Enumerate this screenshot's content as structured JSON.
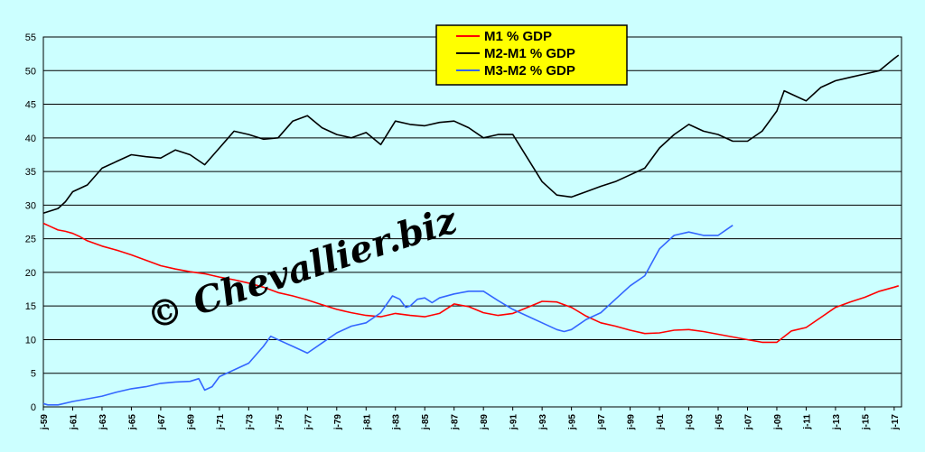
{
  "chart_data": {
    "type": "line",
    "title": "",
    "xlabel": "",
    "ylabel": "",
    "ylim": [
      0,
      55
    ],
    "yticks": [
      "0",
      "5",
      "10",
      "15",
      "20",
      "25",
      "30",
      "35",
      "40",
      "45",
      "50",
      "55"
    ],
    "x_tick_labels": [
      "j-59",
      "j-61",
      "j-63",
      "j-65",
      "j-67",
      "j-69",
      "j-71",
      "j-73",
      "j-75",
      "j-77",
      "j-79",
      "j-81",
      "j-83",
      "j-85",
      "j-87",
      "j-89",
      "j-91",
      "j-93",
      "j-95",
      "j-97",
      "j-99",
      "j-01",
      "j-03",
      "j-05",
      "j-07",
      "j-09",
      "j-11",
      "j-13",
      "j-15",
      "j-17"
    ],
    "x_range": [
      1959.0,
      2017.5
    ],
    "grid": true,
    "legend_position": "top-center",
    "watermark": "© Chevallier.biz",
    "series": [
      {
        "name": "M1 % GDP",
        "color": "#ff0000",
        "x": [
          1959.0,
          1959.5,
          1960,
          1960.5,
          1961,
          1961.5,
          1962,
          1963,
          1964,
          1965,
          1966,
          1967,
          1968,
          1969,
          1970,
          1971,
          1972,
          1973,
          1974,
          1975,
          1976,
          1977,
          1978,
          1979,
          1980,
          1981,
          1982,
          1983,
          1984,
          1985,
          1986,
          1987,
          1988,
          1989,
          1990,
          1991,
          1992,
          1993,
          1994,
          1995,
          1996,
          1997,
          1998,
          1999,
          2000,
          2001,
          2002,
          2003,
          2004,
          2005,
          2006,
          2007,
          2008,
          2009,
          2010,
          2011,
          2012,
          2013,
          2014,
          2015,
          2016,
          2017,
          2017.3
        ],
        "y": [
          27.3,
          26.8,
          26.3,
          26.1,
          25.8,
          25.3,
          24.7,
          23.9,
          23.3,
          22.6,
          21.8,
          21.0,
          20.5,
          20.1,
          19.8,
          19.3,
          18.9,
          18.4,
          17.8,
          17.0,
          16.5,
          15.9,
          15.2,
          14.5,
          14.0,
          13.6,
          13.4,
          13.9,
          13.6,
          13.4,
          13.9,
          15.3,
          14.9,
          14.0,
          13.6,
          13.9,
          14.8,
          15.7,
          15.6,
          14.8,
          13.5,
          12.5,
          12.0,
          11.4,
          10.9,
          11.0,
          11.4,
          11.5,
          11.2,
          10.8,
          10.4,
          10.0,
          9.6,
          9.6,
          11.3,
          11.8,
          13.3,
          14.8,
          15.6,
          16.3,
          17.2,
          17.8,
          18.0
        ]
      },
      {
        "name": "M2-M1 % GDP",
        "color": "#000000",
        "x": [
          1959.0,
          1960,
          1960.5,
          1961,
          1962,
          1963,
          1964,
          1965,
          1966,
          1967,
          1968,
          1969,
          1970,
          1971,
          1972,
          1973,
          1974,
          1975,
          1976,
          1977,
          1978,
          1979,
          1980,
          1981,
          1982,
          1983,
          1984,
          1985,
          1986,
          1987,
          1988,
          1989,
          1990,
          1991,
          1992,
          1993,
          1994,
          1995,
          1996,
          1997,
          1998,
          1999,
          2000,
          2001,
          2002,
          2003,
          2004,
          2005,
          2006,
          2007,
          2008,
          2009,
          2009.5,
          2010,
          2011,
          2012,
          2013,
          2014,
          2015,
          2016,
          2017,
          2017.3
        ],
        "y": [
          28.8,
          29.5,
          30.5,
          32.0,
          33.0,
          35.5,
          36.5,
          37.5,
          37.2,
          37.0,
          38.2,
          37.5,
          36.0,
          38.5,
          41.0,
          40.5,
          39.8,
          40.0,
          42.5,
          43.3,
          41.5,
          40.5,
          40.0,
          40.8,
          39.0,
          42.5,
          42.0,
          41.8,
          42.3,
          42.5,
          41.5,
          40.0,
          40.5,
          40.5,
          37.0,
          33.5,
          31.5,
          31.2,
          32.0,
          32.8,
          33.5,
          34.5,
          35.5,
          38.5,
          40.5,
          42.0,
          41.0,
          40.5,
          39.5,
          39.5,
          41.0,
          44.0,
          47.0,
          46.5,
          45.5,
          47.5,
          48.5,
          49.0,
          49.5,
          50.0,
          51.8,
          52.3
        ]
      },
      {
        "name": "M3-M2 % GDP",
        "color": "#3366ff",
        "x": [
          1959.0,
          1959.3,
          1960,
          1961,
          1962,
          1963,
          1964,
          1965,
          1966,
          1967,
          1968,
          1969,
          1969.6,
          1970,
          1970.5,
          1971,
          1972,
          1973,
          1974,
          1974.5,
          1975,
          1975.5,
          1976,
          1977,
          1978,
          1979,
          1980,
          1981,
          1982,
          1982.8,
          1983.3,
          1983.7,
          1984,
          1984.5,
          1985,
          1985.5,
          1986,
          1987,
          1988,
          1989,
          1990,
          1991,
          1992,
          1993,
          1994,
          1994.5,
          1995,
          1996,
          1997,
          1998,
          1999,
          2000,
          2001,
          2002,
          2003,
          2004,
          2005,
          2006
        ],
        "y": [
          0.5,
          0.3,
          0.3,
          0.8,
          1.2,
          1.6,
          2.2,
          2.7,
          3.0,
          3.5,
          3.7,
          3.8,
          4.2,
          2.5,
          3.0,
          4.5,
          5.5,
          6.5,
          9.0,
          10.5,
          10.0,
          9.5,
          9.0,
          8.0,
          9.5,
          11.0,
          12.0,
          12.5,
          14.0,
          16.5,
          16.0,
          14.8,
          15.0,
          16.0,
          16.2,
          15.5,
          16.2,
          16.8,
          17.2,
          17.2,
          15.8,
          14.5,
          13.5,
          12.5,
          11.5,
          11.2,
          11.5,
          13.0,
          14.0,
          16.0,
          18.0,
          19.5,
          23.5,
          25.5,
          26.0,
          25.5,
          25.5,
          27.0
        ]
      }
    ]
  }
}
